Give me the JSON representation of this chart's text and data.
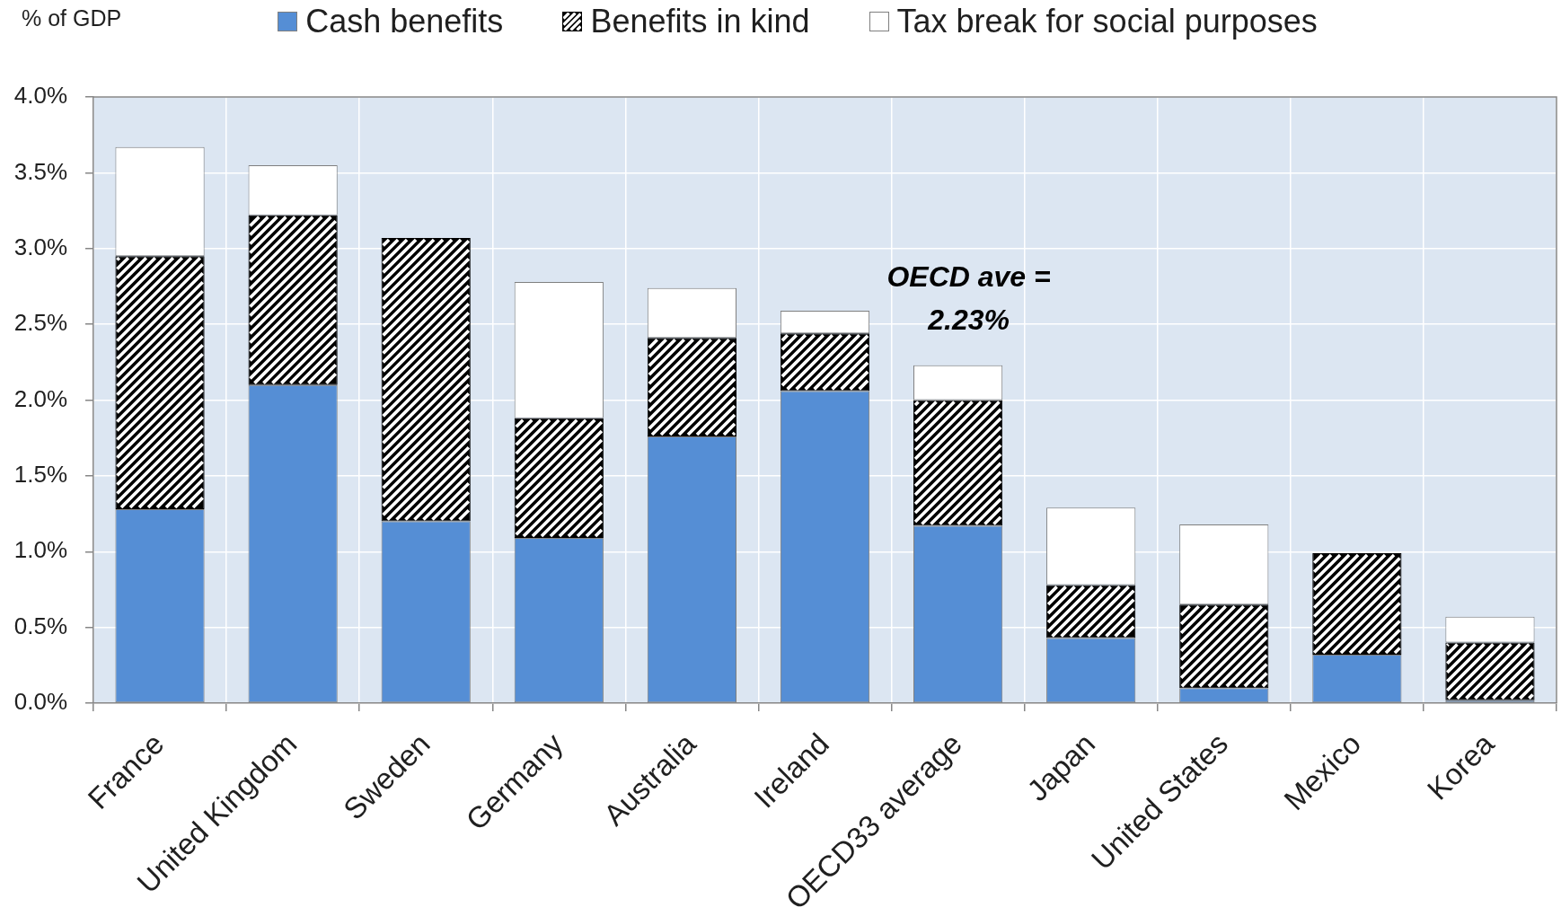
{
  "chart_data": {
    "type": "bar",
    "ylabel": "% of GDP",
    "categories": [
      "France",
      "United Kingdom",
      "Sweden",
      "Germany",
      "Australia",
      "Ireland",
      "OECD33 average",
      "Japan",
      "United States",
      "Mexico",
      "Korea"
    ],
    "series": [
      {
        "name": "Cash benefits",
        "color": "#558ed5",
        "values": [
          1.28,
          2.1,
          1.2,
          1.09,
          1.76,
          2.06,
          1.17,
          0.43,
          0.1,
          0.32,
          0.02
        ]
      },
      {
        "name": "Benefits in kind",
        "color": "#000000",
        "values": [
          1.67,
          1.12,
          1.87,
          0.79,
          0.65,
          0.38,
          0.83,
          0.35,
          0.55,
          0.67,
          0.38
        ]
      },
      {
        "name": "Tax break for social purposes",
        "color": "#ffffff",
        "values": [
          0.72,
          0.33,
          null,
          0.9,
          0.33,
          0.15,
          0.23,
          0.51,
          0.53,
          null,
          0.17
        ]
      }
    ],
    "stacked": true,
    "ylim": [
      0,
      4
    ],
    "yticks": [
      {
        "value": 0,
        "label": "0.0%"
      },
      {
        "value": 0.5,
        "label": "0.5%"
      },
      {
        "value": 1,
        "label": "1.0%"
      },
      {
        "value": 1.5,
        "label": "1.5%"
      },
      {
        "value": 2,
        "label": "2.0%"
      },
      {
        "value": 2.5,
        "label": "2.5%"
      },
      {
        "value": 3,
        "label": "3.0%"
      },
      {
        "value": 3.5,
        "label": "3.5%"
      },
      {
        "value": 4,
        "label": "4.0%"
      }
    ],
    "grid": true,
    "legend": "top",
    "annotations": [
      {
        "text": "OECD ave = 2.23%",
        "x": "OECD33 average",
        "y": 2.23
      }
    ]
  }
}
